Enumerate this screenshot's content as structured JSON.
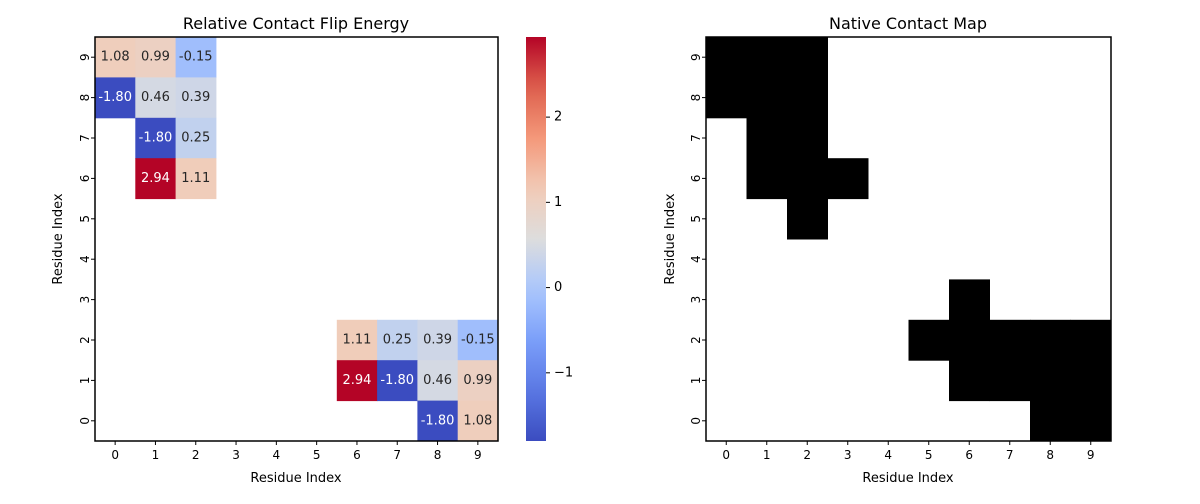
{
  "chart_data": [
    {
      "type": "heatmap",
      "title": "Relative Contact Flip Energy",
      "xlabel": "Residue Index",
      "ylabel": "Residue Index",
      "x_ticks": [
        "0",
        "1",
        "2",
        "3",
        "4",
        "5",
        "6",
        "7",
        "8",
        "9"
      ],
      "y_ticks": [
        "0",
        "1",
        "2",
        "3",
        "4",
        "5",
        "6",
        "7",
        "8",
        "9"
      ],
      "y_order": "bottom-to-top",
      "colormap": "coolwarm",
      "vmin": -1.8,
      "vmax": 2.94,
      "annotated": true,
      "colorbar": {
        "ticks": [
          -1,
          0,
          1,
          2
        ],
        "tick_labels": [
          "−1",
          "0",
          "1",
          "2"
        ],
        "placement": "right"
      },
      "cells": [
        {
          "x": 0,
          "y": 9,
          "value": 1.08,
          "label": "1.08"
        },
        {
          "x": 1,
          "y": 9,
          "value": 0.99,
          "label": "0.99"
        },
        {
          "x": 2,
          "y": 9,
          "value": -0.15,
          "label": "-0.15"
        },
        {
          "x": 0,
          "y": 8,
          "value": -1.8,
          "label": "-1.80"
        },
        {
          "x": 1,
          "y": 8,
          "value": 0.46,
          "label": "0.46"
        },
        {
          "x": 2,
          "y": 8,
          "value": 0.39,
          "label": "0.39"
        },
        {
          "x": 1,
          "y": 7,
          "value": -1.8,
          "label": "-1.80"
        },
        {
          "x": 2,
          "y": 7,
          "value": 0.25,
          "label": "0.25"
        },
        {
          "x": 1,
          "y": 6,
          "value": 2.94,
          "label": "2.94"
        },
        {
          "x": 2,
          "y": 6,
          "value": 1.11,
          "label": "1.11"
        },
        {
          "x": 6,
          "y": 2,
          "value": 1.11,
          "label": "1.11"
        },
        {
          "x": 7,
          "y": 2,
          "value": 0.25,
          "label": "0.25"
        },
        {
          "x": 8,
          "y": 2,
          "value": 0.39,
          "label": "0.39"
        },
        {
          "x": 9,
          "y": 2,
          "value": -0.15,
          "label": "-0.15"
        },
        {
          "x": 6,
          "y": 1,
          "value": 2.94,
          "label": "2.94"
        },
        {
          "x": 7,
          "y": 1,
          "value": -1.8,
          "label": "-1.80"
        },
        {
          "x": 8,
          "y": 1,
          "value": 0.46,
          "label": "0.46"
        },
        {
          "x": 9,
          "y": 1,
          "value": 0.99,
          "label": "0.99"
        },
        {
          "x": 8,
          "y": 0,
          "value": -1.8,
          "label": "-1.80"
        },
        {
          "x": 9,
          "y": 0,
          "value": 1.08,
          "label": "1.08"
        }
      ]
    },
    {
      "type": "heatmap",
      "title": "Native Contact Map",
      "xlabel": "Residue Index",
      "ylabel": "Residue Index",
      "x_ticks": [
        "0",
        "1",
        "2",
        "3",
        "4",
        "5",
        "6",
        "7",
        "8",
        "9"
      ],
      "y_ticks": [
        "0",
        "1",
        "2",
        "3",
        "4",
        "5",
        "6",
        "7",
        "8",
        "9"
      ],
      "y_order": "bottom-to-top",
      "colormap": "binary",
      "contact_color": "#000000",
      "background_color": "#ffffff",
      "contacts": [
        [
          0,
          9
        ],
        [
          1,
          9
        ],
        [
          2,
          9
        ],
        [
          0,
          8
        ],
        [
          1,
          8
        ],
        [
          2,
          8
        ],
        [
          1,
          7
        ],
        [
          2,
          7
        ],
        [
          1,
          6
        ],
        [
          2,
          6
        ],
        [
          3,
          6
        ],
        [
          2,
          5
        ],
        [
          6,
          3
        ],
        [
          5,
          2
        ],
        [
          6,
          2
        ],
        [
          7,
          2
        ],
        [
          8,
          2
        ],
        [
          9,
          2
        ],
        [
          6,
          1
        ],
        [
          7,
          1
        ],
        [
          8,
          1
        ],
        [
          9,
          1
        ],
        [
          8,
          0
        ],
        [
          9,
          0
        ]
      ]
    }
  ]
}
